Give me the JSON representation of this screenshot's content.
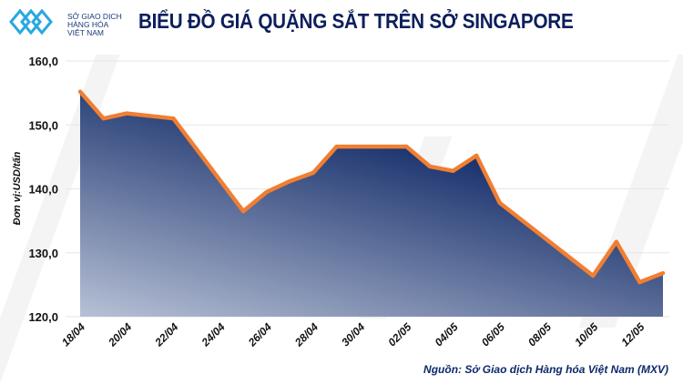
{
  "header": {
    "logo_text": [
      "SỞ GIAO DỊCH",
      "HÀNG HÓA",
      "VIỆT NAM"
    ],
    "title": "BIỂU ĐỒ GIÁ QUẶNG SẮT TRÊN SỞ SINGAPORE"
  },
  "source": "Nguồn: Sở Giao dịch Hàng hóa Việt Nam (MXV)",
  "chart_data": {
    "type": "area",
    "title": "BIỂU ĐỒ GIÁ QUẶNG SẮT TRÊN SỞ SINGAPORE",
    "ylabel": "Đơn vị:USD/tấn",
    "xlabel": "",
    "ylim": [
      120,
      160
    ],
    "yticks": [
      "120,0",
      "130,0",
      "140,0",
      "150,0",
      "160,0"
    ],
    "ytick_values": [
      120,
      130,
      140,
      150,
      160
    ],
    "xtick_labels": [
      "18/04",
      "20/04",
      "22/04",
      "24/04",
      "26/04",
      "28/04",
      "30/04",
      "02/05",
      "04/05",
      "06/05",
      "08/05",
      "10/05",
      "12/05"
    ],
    "x_start": "18/04",
    "x_end": "13/05",
    "grid": true,
    "line_color": "#f07f32",
    "fill_colors": [
      "#031d5e",
      "#a9b4cc"
    ],
    "points": [
      {
        "date": "18/04",
        "value": 155.2
      },
      {
        "date": "19/04",
        "value": 151.0
      },
      {
        "date": "20/04",
        "value": 151.8
      },
      {
        "date": "22/04",
        "value": 151.0
      },
      {
        "date": "25/04",
        "value": 136.5
      },
      {
        "date": "26/04",
        "value": 139.5
      },
      {
        "date": "27/04",
        "value": 141.2
      },
      {
        "date": "28/04",
        "value": 142.5
      },
      {
        "date": "29/04",
        "value": 146.6
      },
      {
        "date": "02/05",
        "value": 146.6
      },
      {
        "date": "03/05",
        "value": 143.5
      },
      {
        "date": "04/05",
        "value": 142.8
      },
      {
        "date": "05/05",
        "value": 145.2
      },
      {
        "date": "06/05",
        "value": 137.8
      },
      {
        "date": "10/05",
        "value": 126.4
      },
      {
        "date": "11/05",
        "value": 131.7
      },
      {
        "date": "12/05",
        "value": 125.4
      },
      {
        "date": "13/05",
        "value": 126.8
      }
    ]
  }
}
